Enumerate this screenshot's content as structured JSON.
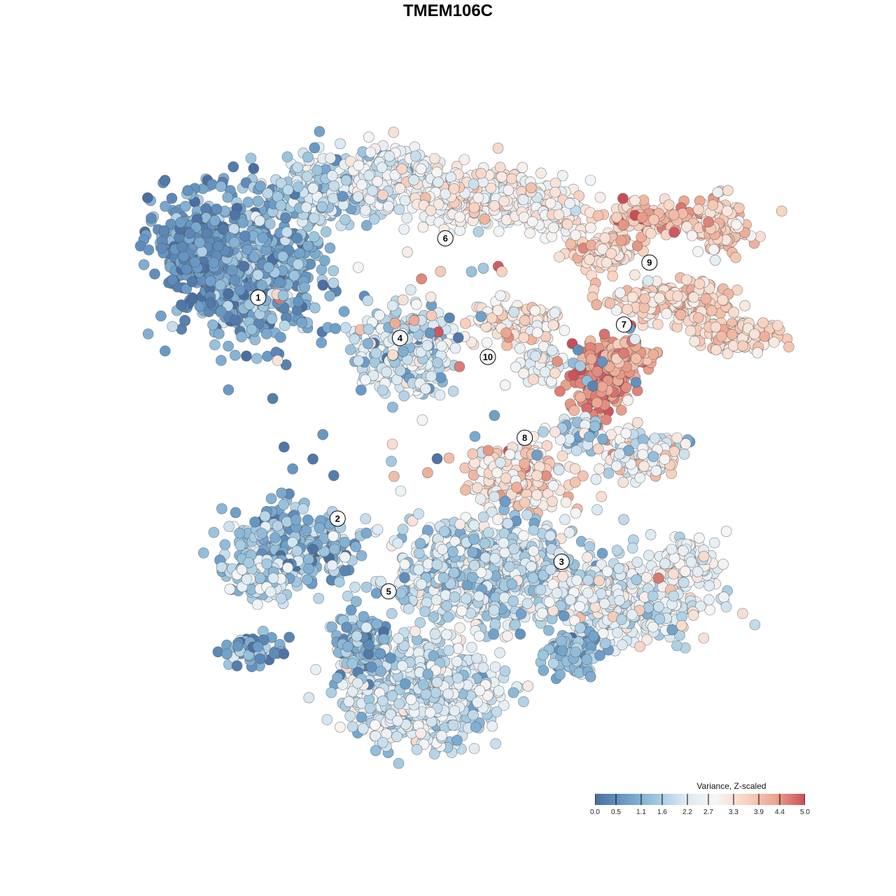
{
  "title": "TMEM106C",
  "chart_data": {
    "type": "scatter",
    "title": "TMEM106C",
    "xlabel": "",
    "ylabel": "",
    "grid": false,
    "color_scale": {
      "title": "Variance, Z-scaled",
      "min": 0.0,
      "max": 5.0,
      "ticks": [
        "0.0",
        "0.5",
        "1.1",
        "1.6",
        "2.2",
        "2.7",
        "3.3",
        "3.9",
        "4.4",
        "5.0"
      ],
      "tick_values": [
        0.0,
        0.5,
        1.1,
        1.6,
        2.2,
        2.7,
        3.3,
        3.9,
        4.4,
        5.0
      ],
      "colors": [
        "#4a6fa0",
        "#6a9cc8",
        "#9cc5de",
        "#dbe9f2",
        "#f6f6f6",
        "#f8d5c4",
        "#eba58e",
        "#c94e5a"
      ],
      "legend_position": "bottom-right"
    },
    "clusters": [
      {
        "label": "1",
        "x": -6.2,
        "y": 6.1,
        "mean": 1.0
      },
      {
        "label": "2",
        "x": -3.4,
        "y": -2.1,
        "mean": 1.4
      },
      {
        "label": "3",
        "x": 4.5,
        "y": -3.7,
        "mean": 2.4
      },
      {
        "label": "4",
        "x": -1.2,
        "y": 4.6,
        "mean": 2.2
      },
      {
        "label": "5",
        "x": -1.6,
        "y": -4.8,
        "mean": 1.9
      },
      {
        "label": "6",
        "x": 0.4,
        "y": 8.3,
        "mean": 2.6
      },
      {
        "label": "7",
        "x": 6.7,
        "y": 5.1,
        "mean": 3.6
      },
      {
        "label": "8",
        "x": 3.2,
        "y": 0.9,
        "mean": 3.8
      },
      {
        "label": "9",
        "x": 7.6,
        "y": 7.4,
        "mean": 3.9
      },
      {
        "label": "10",
        "x": 1.9,
        "y": 3.9,
        "mean": 3.0
      }
    ]
  }
}
